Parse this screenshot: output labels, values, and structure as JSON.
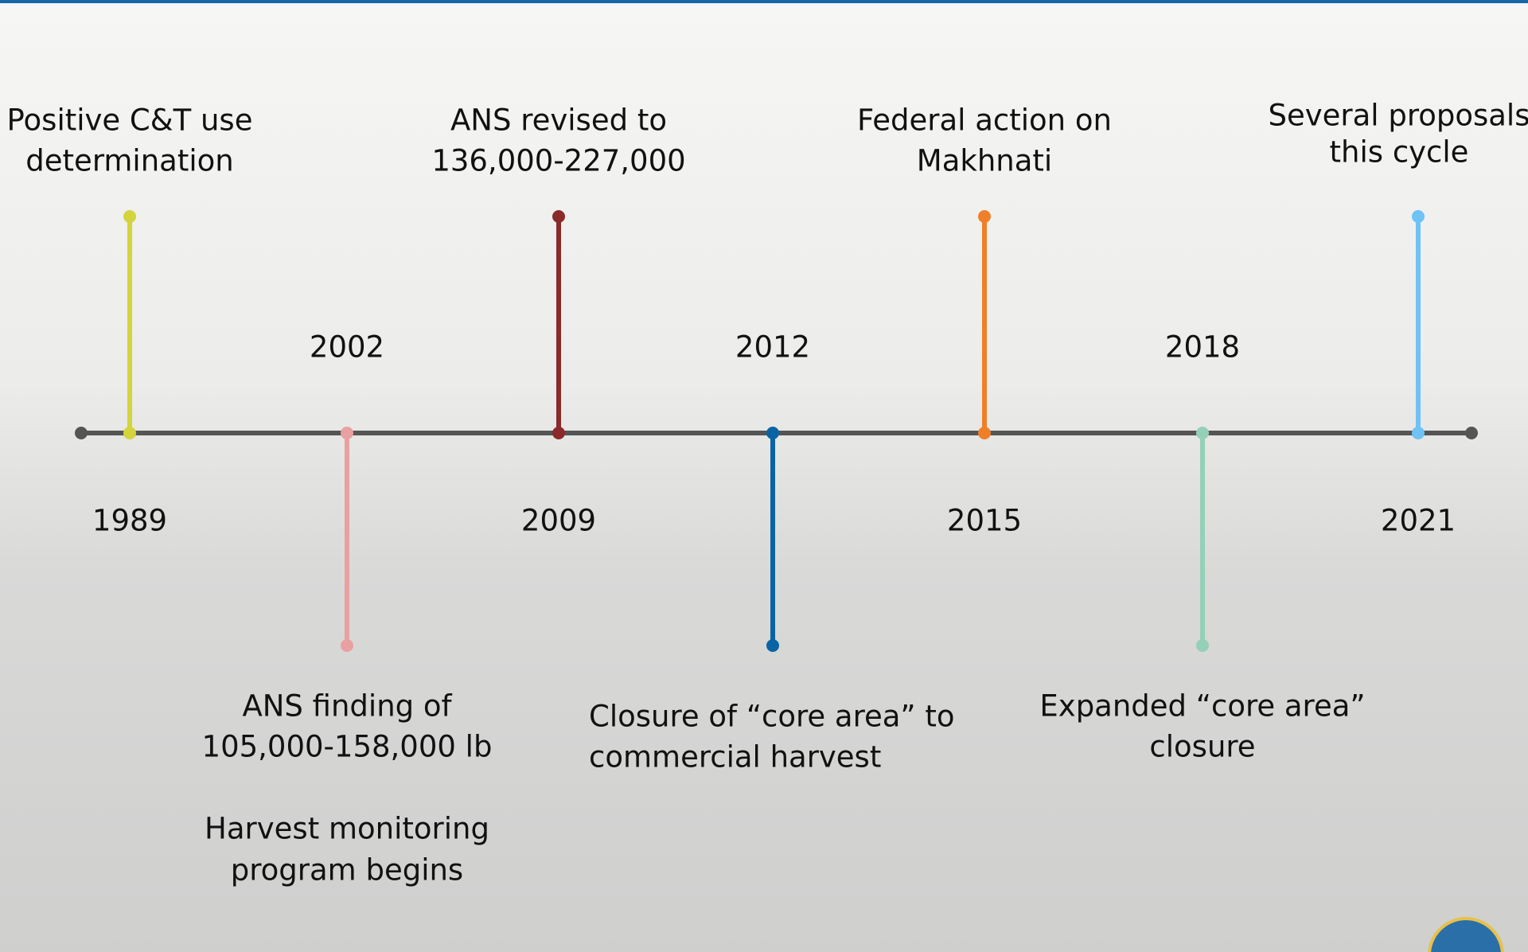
{
  "timeline": {
    "events": [
      {
        "year": "1989",
        "side": "above",
        "color": "#d4d43c",
        "label": [
          "Positive C&T use",
          "determination"
        ]
      },
      {
        "year": "2002",
        "side": "below",
        "color": "#e8a0a0",
        "label": [
          "ANS finding of",
          "105,000-158,000 lb"
        ],
        "note": [
          "Harvest monitoring",
          "program begins"
        ]
      },
      {
        "year": "2009",
        "side": "above",
        "color": "#8b2a2a",
        "label": [
          "ANS revised to",
          "136,000-227,000"
        ]
      },
      {
        "year": "2012",
        "side": "below",
        "color": "#0a64a4",
        "label": [
          "Closure of “core area” to",
          "commercial harvest"
        ]
      },
      {
        "year": "2015",
        "side": "above",
        "color": "#f07f2a",
        "label": [
          "Federal action on",
          "Makhnati"
        ]
      },
      {
        "year": "2018",
        "side": "below",
        "color": "#94d0b8",
        "label": [
          "Expanded “core area”",
          "closure"
        ]
      },
      {
        "year": "2021",
        "side": "above",
        "color": "#6ec2f4",
        "label": [
          "Several proposals",
          "this cycle"
        ]
      }
    ]
  }
}
